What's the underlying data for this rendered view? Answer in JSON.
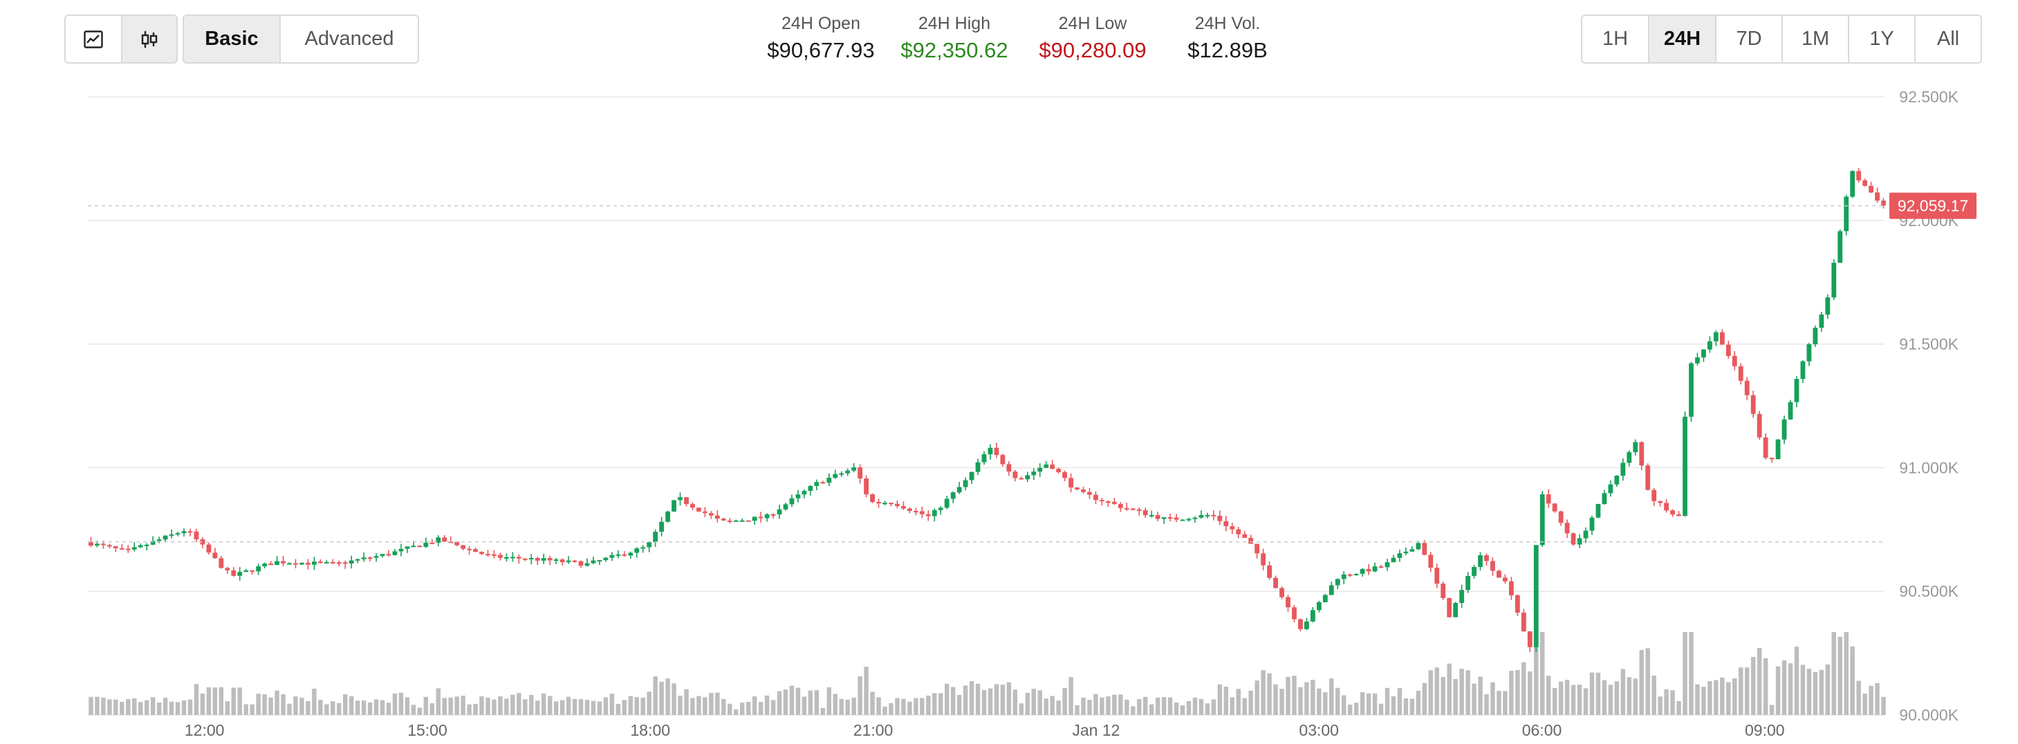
{
  "chart_toggle": [
    {
      "name": "line-chart-icon",
      "active": false
    },
    {
      "name": "candlestick-icon",
      "active": true
    }
  ],
  "mode_tabs": [
    {
      "label": "Basic",
      "active": true
    },
    {
      "label": "Advanced",
      "active": false
    }
  ],
  "stats": {
    "open": {
      "label": "24H Open",
      "value": "$90,677.93"
    },
    "high": {
      "label": "24H High",
      "value": "$92,350.62"
    },
    "low": {
      "label": "24H Low",
      "value": "$90,280.09"
    },
    "vol": {
      "label": "24H Vol.",
      "value": "$12.89B"
    }
  },
  "ranges": [
    {
      "label": "1H",
      "active": false
    },
    {
      "label": "24H",
      "active": true
    },
    {
      "label": "7D",
      "active": false
    },
    {
      "label": "1M",
      "active": false
    },
    {
      "label": "1Y",
      "active": false
    },
    {
      "label": "All",
      "active": false
    }
  ],
  "colors": {
    "up": "#16a05a",
    "down": "#e8585c",
    "volume": "#bdbdbd",
    "high": "#2b8a1e",
    "low": "#c0161c"
  },
  "chart_data": {
    "type": "candlestick",
    "ylim": [
      90000,
      92500
    ],
    "y_ticks": [
      "92.500K",
      "92.000K",
      "91.500K",
      "91.000K",
      "90.500K",
      "90.000K"
    ],
    "y_tick_values": [
      92500,
      92000,
      91500,
      91000,
      90500,
      90000
    ],
    "x_ticks": [
      "12:00",
      "15:00",
      "18:00",
      "21:00",
      "Jan 12",
      "03:00",
      "06:00",
      "09:00"
    ],
    "x_tick_hours": [
      12,
      15,
      18,
      21,
      24,
      27,
      30,
      33
    ],
    "x_range_hours": [
      10.43,
      34.64
    ],
    "current_price": {
      "label": "92,059.17",
      "value": 92059.17
    },
    "reference_price": 90700,
    "grid": true,
    "candle_close_anchors": [
      [
        10.43,
        90700
      ],
      [
        11.0,
        90660
      ],
      [
        11.8,
        90750
      ],
      [
        12.4,
        90560
      ],
      [
        13.0,
        90620
      ],
      [
        13.8,
        90610
      ],
      [
        14.5,
        90650
      ],
      [
        15.2,
        90710
      ],
      [
        15.9,
        90640
      ],
      [
        16.5,
        90630
      ],
      [
        17.2,
        90610
      ],
      [
        18.0,
        90680
      ],
      [
        18.4,
        90880
      ],
      [
        19.0,
        90780
      ],
      [
        19.6,
        90800
      ],
      [
        20.3,
        90940
      ],
      [
        20.8,
        91000
      ],
      [
        21.0,
        90860
      ],
      [
        21.3,
        90860
      ],
      [
        21.8,
        90800
      ],
      [
        22.3,
        90950
      ],
      [
        22.6,
        91080
      ],
      [
        23.0,
        90950
      ],
      [
        23.4,
        91020
      ],
      [
        23.8,
        90900
      ],
      [
        24.4,
        90840
      ],
      [
        25.0,
        90790
      ],
      [
        25.6,
        90810
      ],
      [
        26.1,
        90700
      ],
      [
        26.5,
        90500
      ],
      [
        26.8,
        90350
      ],
      [
        27.3,
        90560
      ],
      [
        27.9,
        90600
      ],
      [
        28.4,
        90700
      ],
      [
        28.8,
        90400
      ],
      [
        29.2,
        90650
      ],
      [
        29.6,
        90520
      ],
      [
        29.9,
        90250
      ],
      [
        30.0,
        90920
      ],
      [
        30.5,
        90680
      ],
      [
        30.9,
        90900
      ],
      [
        31.3,
        91100
      ],
      [
        31.5,
        90880
      ],
      [
        31.9,
        90800
      ],
      [
        32.0,
        91400
      ],
      [
        32.4,
        91550
      ],
      [
        32.8,
        91300
      ],
      [
        33.1,
        91000
      ],
      [
        33.5,
        91380
      ],
      [
        33.9,
        91700
      ],
      [
        34.2,
        92200
      ],
      [
        34.64,
        92060
      ]
    ],
    "volume_ylim": [
      0,
      1
    ]
  }
}
